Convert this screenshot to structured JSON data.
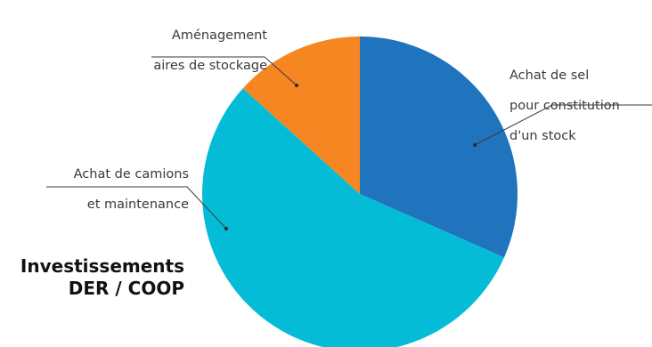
{
  "chart_data": {
    "type": "pie",
    "title_lines": [
      "Investissements",
      "DER / COOP"
    ],
    "slices": [
      {
        "label_lines": [
          "Achat de sel",
          "pour constitution",
          "d'un stock"
        ],
        "value": 31.6,
        "color": "#1f74bd"
      },
      {
        "label_lines": [
          "Achat de camions",
          "et maintenance"
        ],
        "value": 55.1,
        "color": "#05bcd6"
      },
      {
        "label_lines": [
          "Aménagement",
          "aires de stockage"
        ],
        "value": 13.3,
        "color": "#f68622"
      }
    ],
    "start_at": "12 o'clock",
    "direction": "clockwise",
    "legend": "none (callout labels with leader lines)"
  }
}
